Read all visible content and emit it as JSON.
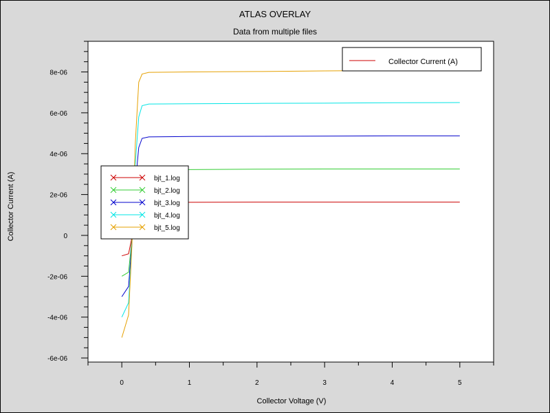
{
  "chart_data": {
    "type": "line",
    "title": "ATLAS OVERLAY",
    "subtitle": "Data from multiple files",
    "xlabel": "Collector Voltage (V)",
    "ylabel": "Collector Current (A)",
    "xlim": [
      -0.5,
      5.5
    ],
    "ylim": [
      -6.2e-06,
      9.5e-06
    ],
    "x_ticks": [
      0,
      1,
      2,
      3,
      4,
      5
    ],
    "x_tick_labels": [
      "0",
      "1",
      "2",
      "3",
      "4",
      "5"
    ],
    "y_ticks": [
      -6e-06,
      -4e-06,
      -2e-06,
      0,
      2e-06,
      4e-06,
      6e-06,
      8e-06
    ],
    "y_tick_labels": [
      "-6e-06",
      "-4e-06",
      "-2e-06",
      "0",
      "2e-06",
      "4e-06",
      "6e-06",
      "8e-06"
    ],
    "grid": false,
    "top_legend": {
      "label": "Collector Current (A)",
      "color": "#cc0000",
      "placement": "top-right"
    },
    "series": [
      {
        "name": "bjt_1.log",
        "color": "#cc0000",
        "x": [
          0,
          0.1,
          0.15,
          0.2,
          0.25,
          0.3,
          0.4,
          1,
          2,
          3,
          4,
          5
        ],
        "y": [
          -1e-06,
          -9e-07,
          -1e-07,
          8e-07,
          1.4e-06,
          1.58e-06,
          1.62e-06,
          1.62e-06,
          1.63e-06,
          1.63e-06,
          1.63e-06,
          1.63e-06
        ]
      },
      {
        "name": "bjt_2.log",
        "color": "#33cc33",
        "x": [
          0,
          0.1,
          0.15,
          0.2,
          0.25,
          0.3,
          0.4,
          1,
          2,
          3,
          4,
          5
        ],
        "y": [
          -2e-06,
          -1.8e-06,
          -2e-07,
          1.5e-06,
          2.8e-06,
          3.15e-06,
          3.2e-06,
          3.22e-06,
          3.24e-06,
          3.25e-06,
          3.25e-06,
          3.25e-06
        ]
      },
      {
        "name": "bjt_3.log",
        "color": "#0000cc",
        "x": [
          0,
          0.1,
          0.15,
          0.2,
          0.25,
          0.3,
          0.4,
          1,
          2,
          3,
          4,
          5
        ],
        "y": [
          -3e-06,
          -2.5e-06,
          -3e-07,
          2.5e-06,
          4.3e-06,
          4.75e-06,
          4.82e-06,
          4.84e-06,
          4.85e-06,
          4.86e-06,
          4.87e-06,
          4.87e-06
        ]
      },
      {
        "name": "bjt_4.log",
        "color": "#00e5e5",
        "x": [
          0,
          0.1,
          0.15,
          0.2,
          0.25,
          0.3,
          0.4,
          1,
          2,
          3,
          4,
          5
        ],
        "y": [
          -4e-06,
          -3.3e-06,
          -4e-07,
          3.5e-06,
          5.8e-06,
          6.35e-06,
          6.43e-06,
          6.44e-06,
          6.46e-06,
          6.47e-06,
          6.49e-06,
          6.5e-06
        ]
      },
      {
        "name": "bjt_5.log",
        "color": "#e5a000",
        "x": [
          0,
          0.1,
          0.15,
          0.2,
          0.25,
          0.3,
          0.4,
          1,
          2,
          3,
          4,
          5
        ],
        "y": [
          -5e-06,
          -3.9e-06,
          -5e-07,
          4.5e-06,
          7.5e-06,
          7.9e-06,
          7.98e-06,
          8e-06,
          8.02e-06,
          8.05e-06,
          8.07e-06,
          8.1e-06
        ]
      }
    ]
  }
}
